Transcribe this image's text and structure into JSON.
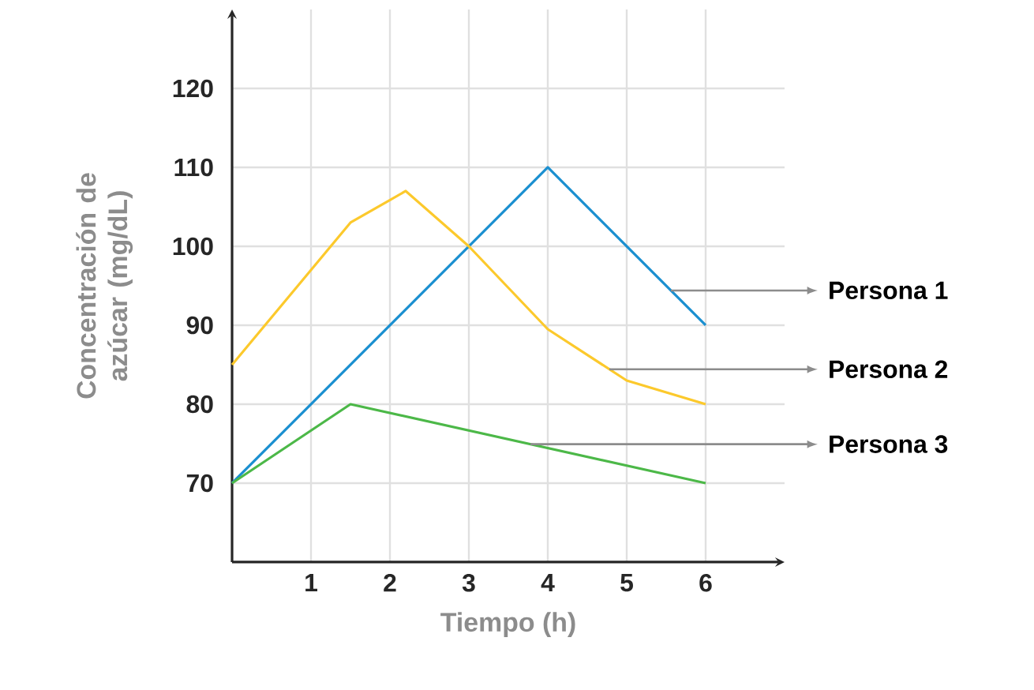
{
  "chart_data": {
    "type": "line",
    "xlabel": "Tiempo (h)",
    "ylabel": "Concentración de azúcar (mg/dL)",
    "xlim": [
      0,
      7
    ],
    "ylim": [
      60,
      130
    ],
    "xticks": [
      1,
      2,
      3,
      4,
      5,
      6
    ],
    "yticks": [
      70,
      80,
      90,
      100,
      110,
      120
    ],
    "grid": true,
    "series": [
      {
        "name": "Persona 1",
        "color": "#1a8fd0",
        "x": [
          0,
          4,
          6
        ],
        "values": [
          70,
          110,
          90
        ]
      },
      {
        "name": "Persona 2",
        "color": "#fcc92c",
        "x": [
          0,
          1,
          1.5,
          2.2,
          3,
          4,
          5,
          6
        ],
        "values": [
          85,
          97,
          103,
          107,
          100,
          89.5,
          83,
          80
        ]
      },
      {
        "name": "Persona 3",
        "color": "#4cb848",
        "x": [
          0,
          1.5,
          6
        ],
        "values": [
          70,
          80,
          70
        ]
      }
    ]
  }
}
